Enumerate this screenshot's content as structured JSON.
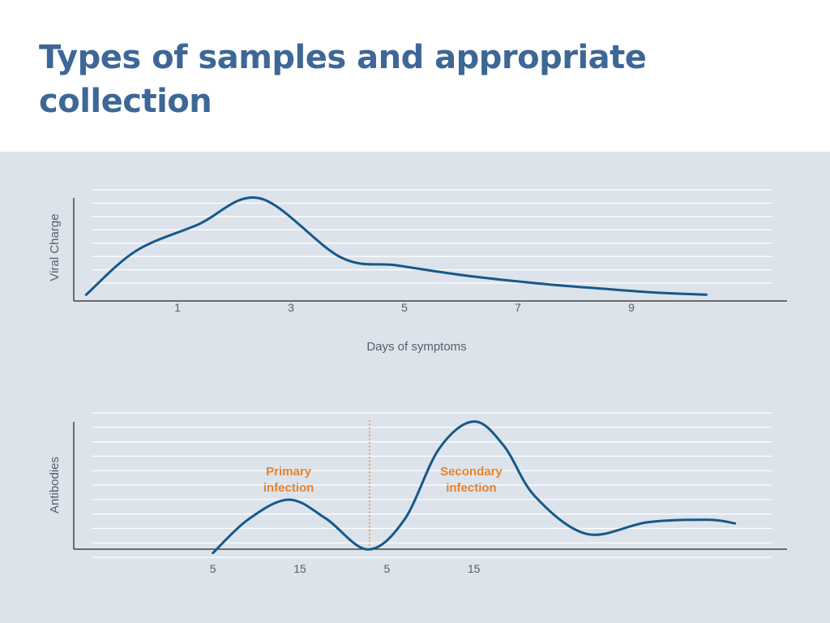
{
  "title": "Types of samples and appropriate collection",
  "colors": {
    "title": "#3d6797",
    "panel_background": "#dce3ea",
    "line": "#15598a",
    "annotation": "#e4822f",
    "axis": "#444444",
    "grid": "#ffffff"
  },
  "chart_data": [
    {
      "type": "line",
      "title": "",
      "xlabel": "Days of symptoms",
      "ylabel": "Viral Charge",
      "tick_labels": [
        "1",
        "3",
        "5",
        "7",
        "9"
      ],
      "xlim": [
        0,
        11.5
      ],
      "ylim": [
        0,
        100
      ],
      "grid": true,
      "y_ticks_shown": false,
      "series": [
        {
          "x": [
            0.2,
            1.0,
            2.0,
            3.0,
            4.3,
            5.2,
            6.3,
            7.5,
            8.5,
            9.4,
            10.2
          ],
          "y": [
            3,
            46,
            72,
            98,
            40,
            32,
            22,
            14,
            9,
            5,
            3
          ]
        }
      ]
    },
    {
      "type": "line",
      "title": "",
      "xlabel": "",
      "ylabel": "Antibodies",
      "tick_labels": [
        "5",
        "15",
        "5",
        "15"
      ],
      "tick_positions": [
        0,
        1,
        2,
        3
      ],
      "xlim": [
        -1.6,
        6.6
      ],
      "ylim": [
        0,
        100
      ],
      "grid": true,
      "y_ticks_shown": false,
      "divider_x": 1.8,
      "annotations": [
        {
          "text_line1": "Primary",
          "text_line2": "infection",
          "x": 0.87
        },
        {
          "text_line1": "Secondary",
          "text_line2": "infection",
          "x": 2.97
        }
      ],
      "series": [
        {
          "x": [
            0.0,
            0.4,
            0.87,
            1.3,
            1.78,
            2.2,
            2.6,
            3.0,
            3.35,
            3.7,
            4.3,
            5.0,
            5.7,
            6.0
          ],
          "y": [
            -8,
            20,
            37,
            21,
            -5,
            20,
            80,
            103,
            82,
            40,
            8,
            18,
            20,
            17
          ]
        }
      ]
    }
  ]
}
